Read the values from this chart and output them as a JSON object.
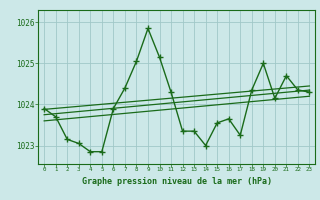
{
  "title": "Graphe pression niveau de la mer (hPa)",
  "background_color": "#cce8e8",
  "grid_color": "#a0c8c8",
  "line_color": "#1a6b1a",
  "xlim": [
    -0.5,
    23.5
  ],
  "ylim": [
    1022.55,
    1026.3
  ],
  "yticks": [
    1023,
    1024,
    1025,
    1026
  ],
  "xticks": [
    0,
    1,
    2,
    3,
    4,
    5,
    6,
    7,
    8,
    9,
    10,
    11,
    12,
    13,
    14,
    15,
    16,
    17,
    18,
    19,
    20,
    21,
    22,
    23
  ],
  "series1_x": [
    0,
    1,
    2,
    3,
    4,
    5,
    6,
    7,
    8,
    9,
    10,
    11,
    12,
    13,
    14,
    15,
    16,
    17,
    18,
    19,
    20,
    21,
    22,
    23
  ],
  "series1_y": [
    1023.9,
    1023.7,
    1023.15,
    1023.05,
    1022.85,
    1022.85,
    1023.9,
    1024.4,
    1025.05,
    1025.85,
    1025.15,
    1024.3,
    1023.35,
    1023.35,
    1023.0,
    1023.55,
    1023.65,
    1023.25,
    1024.35,
    1025.0,
    1024.15,
    1024.7,
    1024.35,
    1024.3
  ],
  "trend1_x": [
    0,
    23
  ],
  "trend1_y": [
    1023.75,
    1024.35
  ],
  "trend2_x": [
    0,
    23
  ],
  "trend2_y": [
    1023.6,
    1024.2
  ],
  "trend3_x": [
    0,
    23
  ],
  "trend3_y": [
    1023.88,
    1024.45
  ]
}
